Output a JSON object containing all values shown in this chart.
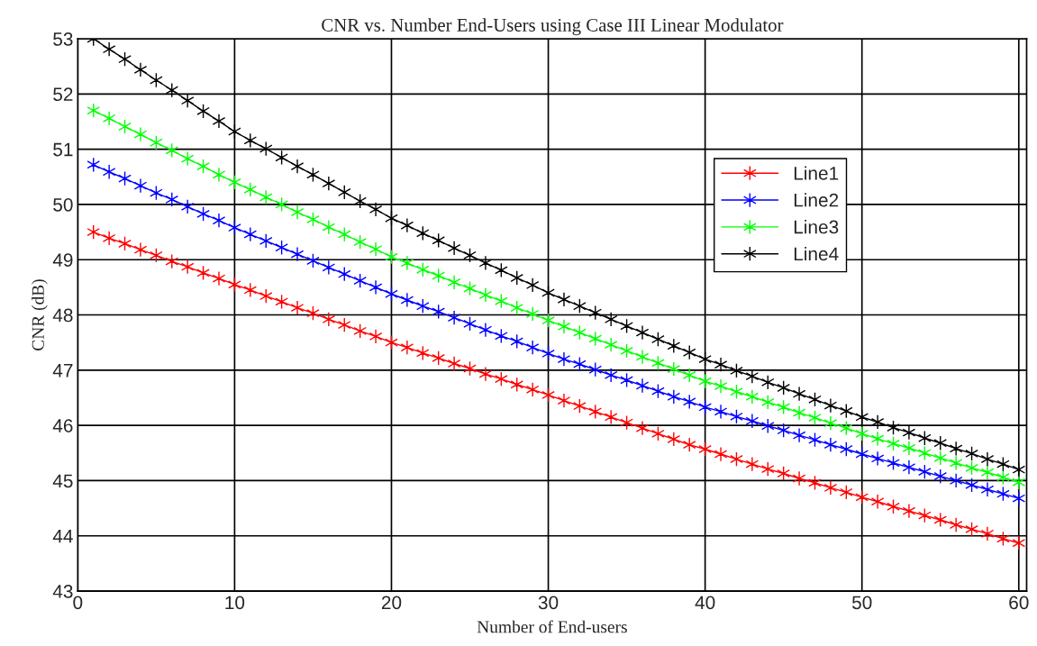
{
  "chart_data": {
    "type": "line",
    "title": "CNR vs. Number End-Users using Case III Linear Modulator",
    "xlabel": "Number of End-users",
    "ylabel": "CNR (dB)",
    "x": [
      1,
      2,
      3,
      4,
      5,
      6,
      7,
      8,
      9,
      10,
      11,
      12,
      13,
      14,
      15,
      16,
      17,
      18,
      19,
      20,
      21,
      22,
      23,
      24,
      25,
      26,
      27,
      28,
      29,
      30,
      31,
      32,
      33,
      34,
      35,
      36,
      37,
      38,
      39,
      40,
      41,
      42,
      43,
      44,
      45,
      46,
      47,
      48,
      49,
      50,
      51,
      52,
      53,
      54,
      55,
      56,
      57,
      58,
      59,
      60
    ],
    "series": [
      {
        "name": "Line1",
        "color": "#ff0000",
        "values": [
          49.5,
          49.39,
          49.29,
          49.18,
          49.08,
          48.97,
          48.87,
          48.76,
          48.66,
          48.55,
          48.45,
          48.34,
          48.24,
          48.13,
          48.03,
          47.92,
          47.82,
          47.71,
          47.61,
          47.5,
          47.41,
          47.31,
          47.22,
          47.12,
          47.03,
          46.93,
          46.84,
          46.74,
          46.65,
          46.55,
          46.45,
          46.35,
          46.25,
          46.15,
          46.05,
          45.95,
          45.85,
          45.75,
          45.65,
          45.57,
          45.48,
          45.39,
          45.3,
          45.21,
          45.13,
          45.04,
          44.96,
          44.87,
          44.79,
          44.7,
          44.62,
          44.53,
          44.45,
          44.37,
          44.29,
          44.2,
          44.12,
          44.04,
          43.95,
          43.87
        ]
      },
      {
        "name": "Line2",
        "color": "#0000ff",
        "values": [
          50.72,
          50.59,
          50.47,
          50.34,
          50.21,
          50.09,
          49.96,
          49.83,
          49.71,
          49.58,
          49.46,
          49.34,
          49.22,
          49.1,
          48.98,
          48.86,
          48.74,
          48.62,
          48.5,
          48.38,
          48.27,
          48.16,
          48.06,
          47.95,
          47.84,
          47.73,
          47.62,
          47.52,
          47.41,
          47.3,
          47.2,
          47.11,
          47.01,
          46.91,
          46.82,
          46.72,
          46.62,
          46.52,
          46.43,
          46.33,
          46.25,
          46.16,
          46.08,
          45.99,
          45.91,
          45.82,
          45.74,
          45.65,
          45.57,
          45.48,
          45.4,
          45.32,
          45.24,
          45.16,
          45.08,
          45.0,
          44.92,
          44.84,
          44.76,
          44.68
        ]
      },
      {
        "name": "Line3",
        "color": "#00ff00",
        "values": [
          51.7,
          51.56,
          51.41,
          51.27,
          51.12,
          50.98,
          50.83,
          50.69,
          50.54,
          50.4,
          50.27,
          50.13,
          50.0,
          49.86,
          49.73,
          49.59,
          49.46,
          49.32,
          49.19,
          49.05,
          48.94,
          48.82,
          48.71,
          48.59,
          48.48,
          48.36,
          48.25,
          48.13,
          48.02,
          47.9,
          47.79,
          47.68,
          47.57,
          47.46,
          47.35,
          47.24,
          47.13,
          47.02,
          46.91,
          46.8,
          46.71,
          46.61,
          46.52,
          46.42,
          46.33,
          46.23,
          46.14,
          46.04,
          45.95,
          45.85,
          45.76,
          45.67,
          45.59,
          45.5,
          45.41,
          45.32,
          45.23,
          45.15,
          45.06,
          44.97
        ]
      },
      {
        "name": "Line4",
        "color": "#000000",
        "values": [
          53.0,
          52.81,
          52.63,
          52.44,
          52.25,
          52.07,
          51.88,
          51.69,
          51.51,
          51.32,
          51.16,
          51.01,
          50.85,
          50.69,
          50.54,
          50.38,
          50.22,
          50.06,
          49.91,
          49.75,
          49.62,
          49.48,
          49.35,
          49.21,
          49.08,
          48.94,
          48.81,
          48.67,
          48.54,
          48.4,
          48.28,
          48.16,
          48.04,
          47.92,
          47.8,
          47.68,
          47.56,
          47.44,
          47.32,
          47.2,
          47.1,
          46.99,
          46.89,
          46.78,
          46.68,
          46.57,
          46.47,
          46.36,
          46.26,
          46.15,
          46.06,
          45.96,
          45.87,
          45.77,
          45.68,
          45.58,
          45.49,
          45.39,
          45.3,
          45.2
        ]
      }
    ],
    "xlim": [
      0,
      60.5
    ],
    "xticks": [
      0,
      10,
      20,
      30,
      40,
      50,
      60
    ],
    "ylim": [
      43,
      53
    ],
    "yticks": [
      43,
      44,
      45,
      46,
      47,
      48,
      49,
      50,
      51,
      52,
      53
    ],
    "grid": true,
    "legend": "top right",
    "marker": "cross",
    "line_style": "solid"
  }
}
